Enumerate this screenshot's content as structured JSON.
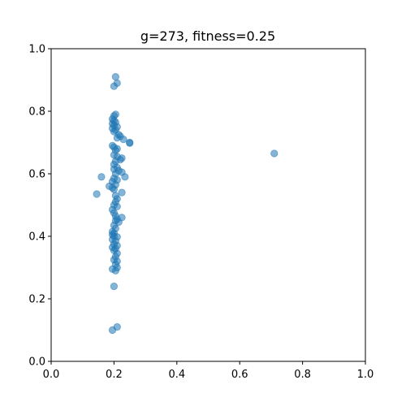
{
  "chart_data": {
    "type": "scatter",
    "title": "g=273, fitness=0.25",
    "xlabel": "",
    "ylabel": "",
    "xlim": [
      0,
      1
    ],
    "ylim": [
      0,
      1
    ],
    "x_ticks": [
      "0.0",
      "0.2",
      "0.4",
      "0.6",
      "0.8",
      "1.0"
    ],
    "y_ticks": [
      "0.0",
      "0.2",
      "0.4",
      "0.6",
      "0.8",
      "1.0"
    ],
    "grid": false,
    "legend": "none",
    "marker_color": "#1f77b4",
    "marker_alpha": 0.55,
    "points": [
      [
        0.205,
        0.91
      ],
      [
        0.21,
        0.89
      ],
      [
        0.2,
        0.88
      ],
      [
        0.205,
        0.79
      ],
      [
        0.2,
        0.785
      ],
      [
        0.195,
        0.775
      ],
      [
        0.2,
        0.77
      ],
      [
        0.205,
        0.765
      ],
      [
        0.195,
        0.76
      ],
      [
        0.2,
        0.755
      ],
      [
        0.21,
        0.75
      ],
      [
        0.195,
        0.745
      ],
      [
        0.205,
        0.74
      ],
      [
        0.2,
        0.735
      ],
      [
        0.215,
        0.725
      ],
      [
        0.22,
        0.72
      ],
      [
        0.21,
        0.715
      ],
      [
        0.23,
        0.71
      ],
      [
        0.25,
        0.7
      ],
      [
        0.25,
        0.698
      ],
      [
        0.195,
        0.69
      ],
      [
        0.2,
        0.685
      ],
      [
        0.21,
        0.68
      ],
      [
        0.205,
        0.675
      ],
      [
        0.2,
        0.66
      ],
      [
        0.21,
        0.655
      ],
      [
        0.225,
        0.65
      ],
      [
        0.22,
        0.645
      ],
      [
        0.205,
        0.64
      ],
      [
        0.2,
        0.63
      ],
      [
        0.21,
        0.62
      ],
      [
        0.2,
        0.615
      ],
      [
        0.215,
        0.61
      ],
      [
        0.225,
        0.605
      ],
      [
        0.205,
        0.6
      ],
      [
        0.235,
        0.59
      ],
      [
        0.16,
        0.59
      ],
      [
        0.2,
        0.585
      ],
      [
        0.21,
        0.58
      ],
      [
        0.195,
        0.575
      ],
      [
        0.205,
        0.565
      ],
      [
        0.185,
        0.56
      ],
      [
        0.195,
        0.555
      ],
      [
        0.2,
        0.55
      ],
      [
        0.225,
        0.54
      ],
      [
        0.145,
        0.535
      ],
      [
        0.205,
        0.53
      ],
      [
        0.21,
        0.52
      ],
      [
        0.205,
        0.51
      ],
      [
        0.2,
        0.5
      ],
      [
        0.21,
        0.495
      ],
      [
        0.195,
        0.485
      ],
      [
        0.2,
        0.475
      ],
      [
        0.205,
        0.465
      ],
      [
        0.225,
        0.46
      ],
      [
        0.21,
        0.455
      ],
      [
        0.205,
        0.45
      ],
      [
        0.215,
        0.445
      ],
      [
        0.2,
        0.435
      ],
      [
        0.205,
        0.425
      ],
      [
        0.195,
        0.415
      ],
      [
        0.2,
        0.41
      ],
      [
        0.195,
        0.405
      ],
      [
        0.2,
        0.4
      ],
      [
        0.21,
        0.398
      ],
      [
        0.195,
        0.39
      ],
      [
        0.205,
        0.385
      ],
      [
        0.2,
        0.375
      ],
      [
        0.21,
        0.37
      ],
      [
        0.195,
        0.365
      ],
      [
        0.205,
        0.36
      ],
      [
        0.2,
        0.355
      ],
      [
        0.21,
        0.345
      ],
      [
        0.205,
        0.335
      ],
      [
        0.2,
        0.325
      ],
      [
        0.21,
        0.32
      ],
      [
        0.205,
        0.31
      ],
      [
        0.21,
        0.3
      ],
      [
        0.195,
        0.295
      ],
      [
        0.205,
        0.29
      ],
      [
        0.2,
        0.24
      ],
      [
        0.21,
        0.11
      ],
      [
        0.195,
        0.1
      ],
      [
        0.71,
        0.665
      ]
    ]
  }
}
